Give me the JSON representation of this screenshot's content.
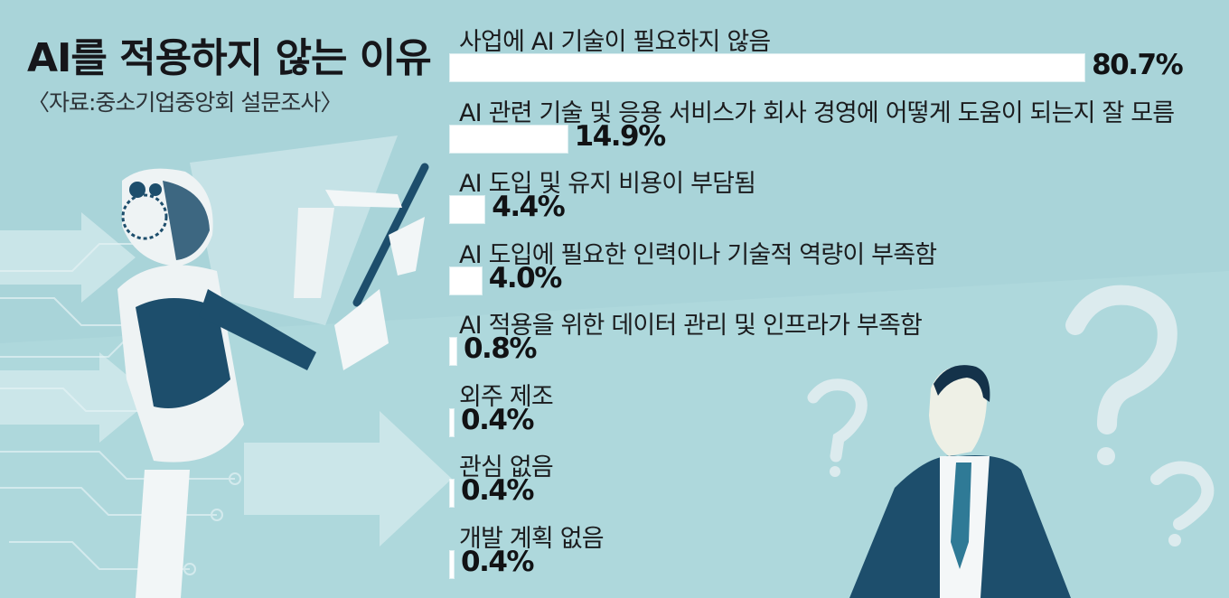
{
  "header": {
    "title": "AI를 적용하지 않는 이유",
    "source": "〈자료:중소기업중앙회 설문조사〉"
  },
  "colors": {
    "background": "#a9d4d9",
    "bar": "#ffffff",
    "figure_dark": "#1d4e6c",
    "question_marks": "#dcebee"
  },
  "illustration": {
    "left": "robot-with-tablet",
    "right": "businessman-with-question-marks"
  },
  "chart_data": {
    "type": "bar",
    "orientation": "horizontal",
    "title": "AI를 적용하지 않는 이유",
    "categories": [
      "사업에 AI 기술이 필요하지 않음",
      "AI 관련 기술 및 응용 서비스가 회사 경영에 어떻게 도움이 되는지 잘 모름",
      "AI 도입 및 유지 비용이 부담됨",
      "AI 도입에  필요한 인력이나 기술적 역량이 부족함",
      "AI 적용을 위한 데이터 관리 및 인프라가 부족함",
      "외주 제조",
      "관심 없음",
      "개발 계획 없음"
    ],
    "values": [
      80.7,
      14.9,
      4.4,
      4.0,
      0.8,
      0.4,
      0.4,
      0.4
    ],
    "value_labels": [
      "80.7%",
      "14.9%",
      "4.4%",
      "4.0%",
      "0.8%",
      "0.4%",
      "0.4%",
      "0.4%"
    ],
    "xlim": [
      0,
      100
    ],
    "unit": "%",
    "grid": false,
    "legend": "none"
  }
}
